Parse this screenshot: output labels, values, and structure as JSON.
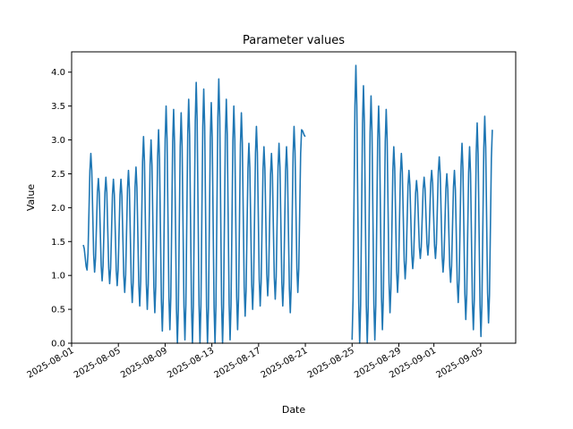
{
  "chart_data": {
    "type": "line",
    "title": "Parameter values",
    "xlabel": "Date",
    "ylabel": "Value",
    "xlim": [
      "2025-08-01",
      "2025-09-08"
    ],
    "ylim": [
      0,
      4.3
    ],
    "grid": false,
    "legend": "none",
    "x_ticks": [
      "2025-08-01",
      "2025-08-05",
      "2025-08-09",
      "2025-08-13",
      "2025-08-17",
      "2025-08-21",
      "2025-08-25",
      "2025-08-29",
      "2025-09-01",
      "2025-09-05"
    ],
    "y_ticks": [
      0.0,
      0.5,
      1.0,
      1.5,
      2.0,
      2.5,
      3.0,
      3.5,
      4.0
    ],
    "y_tick_labels": [
      "0.0",
      "0.5",
      "1.0",
      "1.5",
      "2.0",
      "2.5",
      "3.0",
      "3.5",
      "4.0"
    ],
    "series": [
      {
        "color": "#1f77b4",
        "segments": [
          {
            "start": "2025-08-02",
            "end": "2025-08-21",
            "extremes": [
              1.45,
              1.08,
              2.8,
              1.05,
              2.43,
              0.92,
              2.45,
              0.88,
              2.42,
              0.85,
              2.42,
              0.75,
              2.55,
              0.6,
              2.6,
              0.55,
              3.05,
              0.5,
              3.0,
              0.45,
              3.15,
              0.18,
              3.5,
              0.2,
              3.45,
              0.0,
              3.4,
              0.05,
              3.6,
              0.0,
              3.85,
              0.0,
              3.75,
              0.0,
              3.55,
              0.0,
              3.9,
              0.0,
              3.6,
              0.05,
              3.5,
              0.2,
              3.4,
              0.4,
              2.95,
              0.5,
              3.2,
              0.55,
              2.9,
              0.7,
              2.8,
              0.65,
              2.95,
              0.55,
              2.9,
              0.45,
              3.2,
              0.75,
              3.15,
              3.05
            ]
          },
          {
            "start": "2025-08-25",
            "end": "2025-09-06",
            "extremes": [
              0.05,
              4.1,
              0.0,
              3.8,
              0.0,
              3.65,
              0.05,
              3.5,
              0.2,
              3.45,
              0.45,
              2.9,
              0.75,
              2.8,
              0.95,
              2.55,
              1.1,
              2.4,
              1.25,
              2.45,
              1.3,
              2.55,
              1.25,
              2.75,
              1.05,
              2.5,
              0.9,
              2.55,
              0.6,
              2.95,
              0.35,
              2.9,
              0.2,
              3.25,
              0.1,
              3.35,
              0.3,
              3.15
            ]
          }
        ]
      }
    ]
  }
}
